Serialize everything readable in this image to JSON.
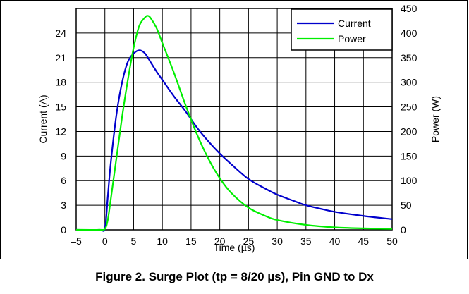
{
  "caption": "Figure 2. Surge Plot (tp = 8/20 µs), Pin GND to Dx",
  "chart_data": {
    "type": "line",
    "title": "",
    "xlabel": "Time (µs)",
    "ylabel_left": "Current (A)",
    "ylabel_right": "Power (W)",
    "xlim": [
      -5,
      50
    ],
    "ylim_left": [
      0,
      27
    ],
    "ylim_right": [
      0,
      450
    ],
    "x_ticks": [
      -5,
      0,
      5,
      10,
      15,
      20,
      25,
      30,
      35,
      40,
      45,
      50
    ],
    "x_tick_labels": [
      "–5",
      "0",
      "5",
      "10",
      "15",
      "20",
      "25",
      "30",
      "35",
      "40",
      "45",
      "50"
    ],
    "y_left_ticks": [
      0,
      3,
      6,
      9,
      12,
      15,
      18,
      21,
      24
    ],
    "y_right_ticks": [
      0,
      50,
      100,
      150,
      200,
      250,
      300,
      350,
      400,
      450
    ],
    "grid": true,
    "legend_position": "top-right",
    "series": [
      {
        "name": "Current",
        "axis": "left",
        "color": "#0000cc",
        "x": [
          -5,
          -1,
          0,
          0.5,
          1,
          2,
          3,
          4,
          5,
          6,
          7,
          8,
          9,
          10,
          12,
          14,
          16,
          18,
          20,
          22,
          25,
          28,
          30,
          33,
          35,
          38,
          40,
          45,
          50
        ],
        "y": [
          0,
          0,
          0.2,
          4,
          8,
          14,
          18,
          20.5,
          21.5,
          21.9,
          21.5,
          20.4,
          19.3,
          18.3,
          16.3,
          14.5,
          12.5,
          10.8,
          9.3,
          8,
          6.2,
          5,
          4.3,
          3.5,
          3.0,
          2.5,
          2.2,
          1.7,
          1.3
        ]
      },
      {
        "name": "Power",
        "axis": "right",
        "color": "#00ee00",
        "x": [
          -5,
          -1,
          0,
          0.5,
          1,
          2,
          3,
          4,
          5,
          6,
          7,
          7.5,
          8,
          9,
          10,
          12,
          14,
          16,
          18,
          20,
          22,
          25,
          28,
          30,
          35,
          40,
          45,
          50
        ],
        "y": [
          0,
          0,
          2,
          20,
          60,
          145,
          230,
          305,
          370,
          415,
          432,
          435,
          430,
          410,
          380,
          320,
          255,
          195,
          145,
          105,
          75,
          45,
          28,
          20,
          10,
          5,
          3,
          2
        ]
      }
    ]
  }
}
